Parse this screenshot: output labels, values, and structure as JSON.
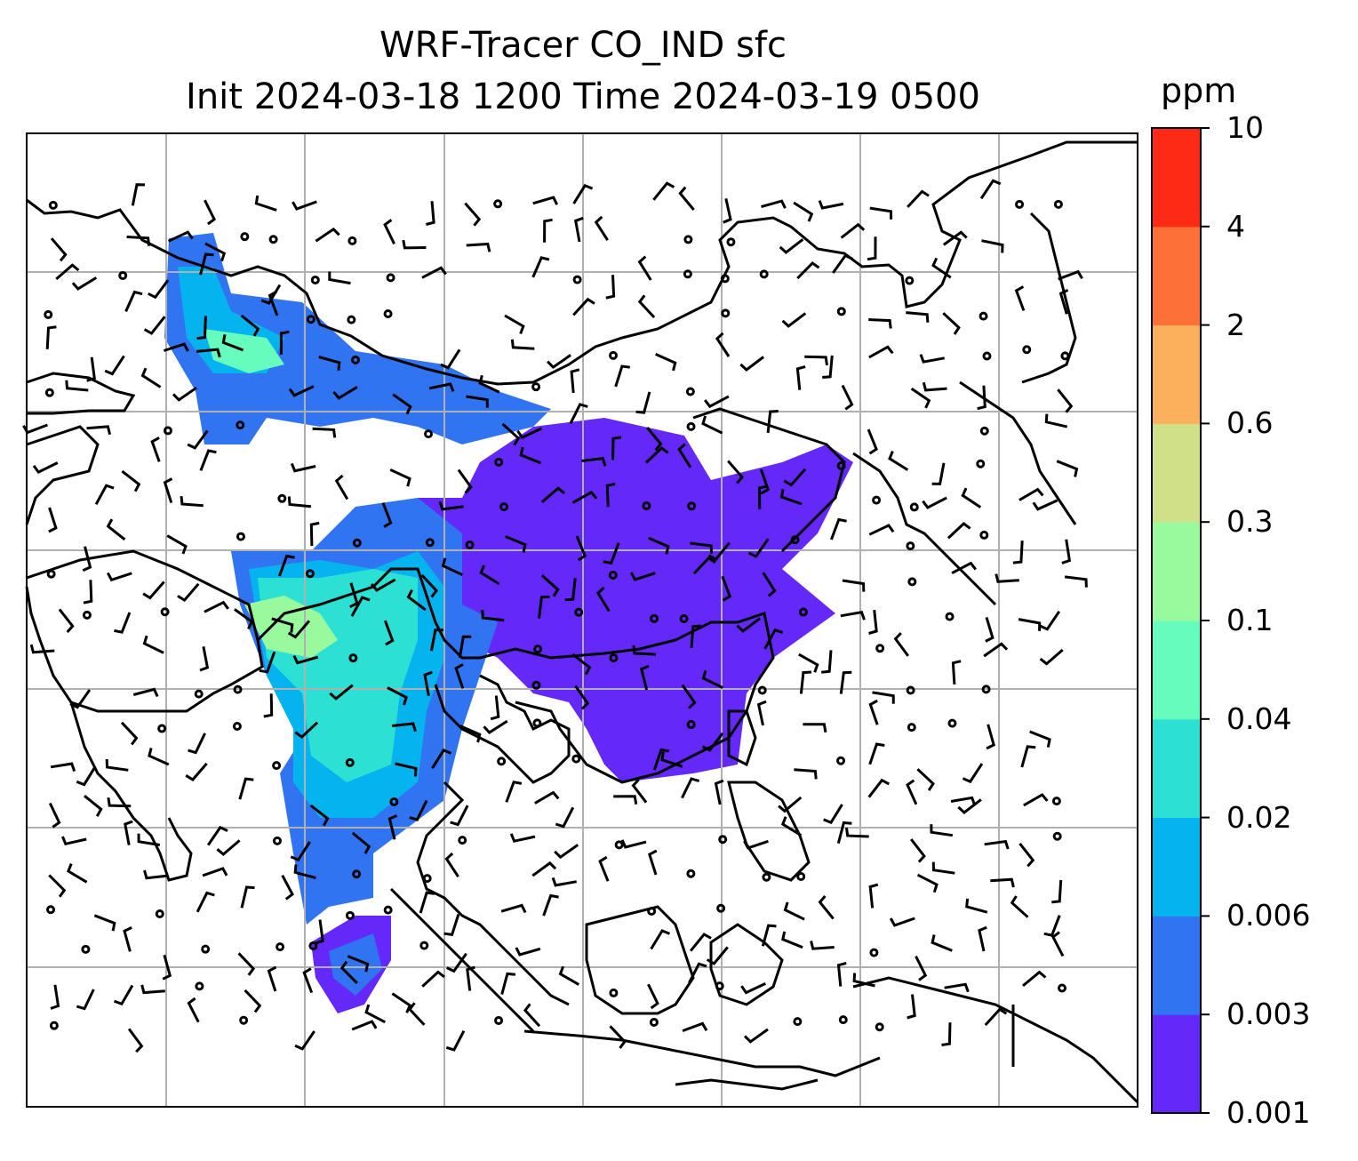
{
  "title_line1": "WRF-Tracer CO_IND sfc",
  "title_line2": "Init 2024-03-18 1200 Time 2024-03-19 0500",
  "colorbar": {
    "units": "ppm",
    "levels": [
      "0.001",
      "0.003",
      "0.006",
      "0.02",
      "0.04",
      "0.1",
      "0.3",
      "0.6",
      "2",
      "4",
      "10"
    ],
    "colors": [
      "#6428f8",
      "#3174f2",
      "#05b4ee",
      "#2de0d4",
      "#66fcbe",
      "#98fa9c",
      "#d0e088",
      "#fdb05c",
      "#fd7038",
      "#ff2a16"
    ]
  },
  "map": {
    "gridline_color": "#b0b0b0",
    "coastline_color": "#000000",
    "wind_barb_color": "#000000"
  }
}
